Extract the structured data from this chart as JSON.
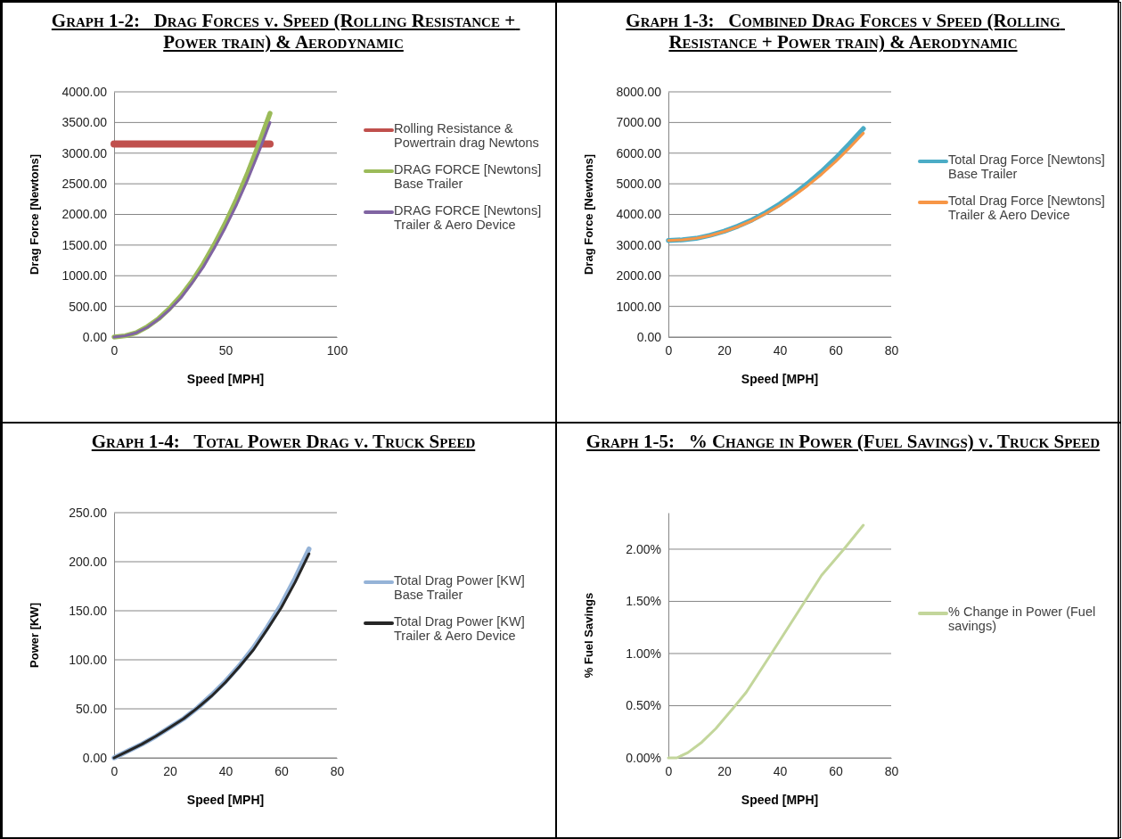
{
  "chart_data": [
    {
      "type": "line",
      "title": "Graph 1-2:   Drag Forces v. Speed (Rolling Resistance + Power train) & Aerodynamic",
      "xlabel": "Speed [MPH]",
      "ylabel": "Drag Force [Newtons]",
      "x": [
        0,
        5,
        10,
        15,
        20,
        25,
        30,
        35,
        40,
        45,
        50,
        55,
        60,
        65,
        70
      ],
      "xlim": [
        0,
        100
      ],
      "xticks": [
        0,
        50,
        100
      ],
      "ylim": [
        0,
        4000
      ],
      "yticks": [
        {
          "value": 0,
          "label": "0.00"
        },
        {
          "value": 500,
          "label": "500.00"
        },
        {
          "value": 1000,
          "label": "1000.00"
        },
        {
          "value": 1500,
          "label": "1500.00"
        },
        {
          "value": 2000,
          "label": "2000.00"
        },
        {
          "value": 2500,
          "label": "2500.00"
        },
        {
          "value": 3000,
          "label": "3000.00"
        },
        {
          "value": 3500,
          "label": "3500.00"
        },
        {
          "value": 4000,
          "label": "4000.00"
        }
      ],
      "grid": "y",
      "legend": "right",
      "marker": "none",
      "line_style": "solid",
      "series": [
        {
          "name": "Rolling Resistance & Powertrain drag Newtons",
          "color": "#c0504d",
          "values": [
            3150,
            3150,
            3150,
            3150,
            3150,
            3150,
            3150,
            3150,
            3150,
            3150,
            3150,
            3150,
            3150,
            3150,
            3150
          ]
        },
        {
          "name": "DRAG FORCE [Newtons] Base Trailer",
          "color": "#9bbb59",
          "values": [
            0,
            20,
            70,
            170,
            300,
            470,
            670,
            910,
            1190,
            1510,
            1860,
            2250,
            2680,
            3150,
            3650
          ]
        },
        {
          "name": "DRAG FORCE [Newtons] Trailer & Aero Device",
          "color": "#8064a2",
          "values": [
            0,
            20,
            70,
            160,
            290,
            450,
            640,
            880,
            1140,
            1450,
            1790,
            2160,
            2570,
            3020,
            3500
          ]
        }
      ]
    },
    {
      "type": "line",
      "title": "Graph 1-3:   Combined Drag Forces v Speed (Rolling Resistance + Power train) & Aerodynamic",
      "xlabel": "Speed [MPH]",
      "ylabel": "Drag Force [Newtons]",
      "x": [
        0,
        5,
        10,
        15,
        20,
        25,
        30,
        35,
        40,
        45,
        50,
        55,
        60,
        65,
        70
      ],
      "xlim": [
        0,
        80
      ],
      "xticks": [
        0,
        20,
        40,
        60,
        80
      ],
      "ylim": [
        0,
        8000
      ],
      "yticks": [
        {
          "value": 0,
          "label": "0.00"
        },
        {
          "value": 1000,
          "label": "1000.00"
        },
        {
          "value": 2000,
          "label": "2000.00"
        },
        {
          "value": 3000,
          "label": "3000.00"
        },
        {
          "value": 4000,
          "label": "4000.00"
        },
        {
          "value": 5000,
          "label": "5000.00"
        },
        {
          "value": 6000,
          "label": "6000.00"
        },
        {
          "value": 7000,
          "label": "7000.00"
        },
        {
          "value": 8000,
          "label": "8000.00"
        }
      ],
      "grid": "y",
      "legend": "right",
      "marker": "none",
      "line_style": "solid",
      "series": [
        {
          "name": "Total Drag Force [Newtons] Base Trailer",
          "color": "#4bacc6",
          "values": [
            3150,
            3170,
            3220,
            3320,
            3450,
            3620,
            3820,
            4060,
            4340,
            4660,
            5010,
            5400,
            5830,
            6300,
            6800
          ]
        },
        {
          "name": "Total Drag Force [Newtons] Trailer & Aero Device",
          "color": "#f79646",
          "values": [
            3150,
            3170,
            3220,
            3310,
            3440,
            3600,
            3790,
            4030,
            4290,
            4600,
            4940,
            5310,
            5720,
            6170,
            6650
          ]
        }
      ]
    },
    {
      "type": "line",
      "title": "Graph 1-4:   Total Power Drag v. Truck Speed",
      "xlabel": "Speed [MPH]",
      "ylabel": "Power [KW]",
      "x": [
        0,
        5,
        10,
        15,
        20,
        25,
        30,
        35,
        40,
        45,
        50,
        55,
        60,
        65,
        70
      ],
      "xlim": [
        0,
        80
      ],
      "xticks": [
        0,
        20,
        40,
        60,
        80
      ],
      "ylim": [
        0,
        250
      ],
      "yticks": [
        {
          "value": 0,
          "label": "0.00"
        },
        {
          "value": 50,
          "label": "50.00"
        },
        {
          "value": 100,
          "label": "100.00"
        },
        {
          "value": 150,
          "label": "150.00"
        },
        {
          "value": 200,
          "label": "200.00"
        },
        {
          "value": 250,
          "label": "250.00"
        }
      ],
      "grid": "y",
      "legend": "right",
      "marker": "none",
      "line_style": "solid",
      "series": [
        {
          "name": "Total Drag Power [KW] Base Trailer",
          "color": "#95b3d7",
          "values": [
            0,
            7,
            14,
            22,
            31,
            40,
            51,
            64,
            78,
            94,
            112,
            133,
            156,
            183,
            213
          ]
        },
        {
          "name": "Total Drag Power [KW] Trailer & Aero Device",
          "color": "#262626",
          "values": [
            0,
            7,
            14,
            22,
            31,
            40,
            51,
            63,
            77,
            93,
            110,
            131,
            153,
            179,
            208
          ]
        }
      ]
    },
    {
      "type": "line",
      "title": "Graph 1-5:   % Change in Power (Fuel Savings) v. Truck Speed",
      "xlabel": "Speed [MPH]",
      "ylabel": "% Fuel  Savings",
      "x": [
        0,
        3,
        7,
        12,
        17,
        24,
        28,
        37,
        43,
        49,
        55,
        63,
        70
      ],
      "xlim": [
        0,
        80
      ],
      "xticks": [
        0,
        20,
        40,
        60,
        80
      ],
      "ylim": [
        0,
        2.35
      ],
      "yticks": [
        {
          "value": 0,
          "label": "0.00%"
        },
        {
          "value": 0.5,
          "label": "0.50%"
        },
        {
          "value": 1,
          "label": "1.00%"
        },
        {
          "value": 1.5,
          "label": "1.50%"
        },
        {
          "value": 2,
          "label": "2.00%"
        }
      ],
      "grid": "y",
      "legend": "right",
      "marker": "none",
      "line_style": "solid",
      "series": [
        {
          "name": "% Change in Power (Fuel savings)",
          "color": "#c3d69b",
          "values": [
            0,
            0,
            0.05,
            0.15,
            0.28,
            0.5,
            0.63,
            1.0,
            1.25,
            1.5,
            1.75,
            2.0,
            2.23
          ]
        }
      ]
    }
  ]
}
